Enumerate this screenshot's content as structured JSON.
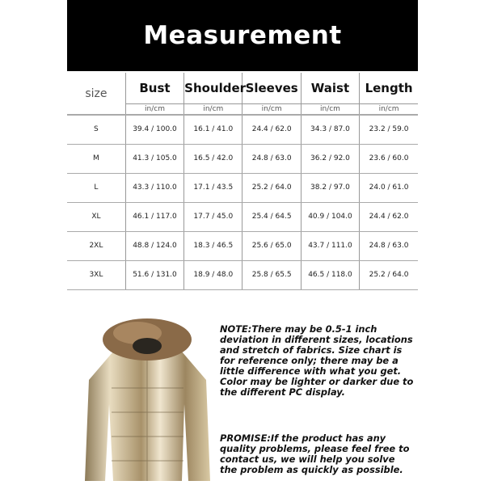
{
  "title": "Measurement",
  "table": {
    "headers": [
      "size",
      "Bust",
      "Shoulder",
      "Sleeves",
      "Waist",
      "Length"
    ],
    "unit": "in/cm",
    "rows": [
      [
        "S",
        "39.4 / 100.0",
        "16.1 / 41.0",
        "24.4 / 62.0",
        "34.3 / 87.0",
        "23.2 / 59.0"
      ],
      [
        "M",
        "41.3 / 105.0",
        "16.5 / 42.0",
        "24.8 / 63.0",
        "36.2 / 92.0",
        "23.6 / 60.0"
      ],
      [
        "L",
        "43.3 / 110.0",
        "17.1 / 43.5",
        "25.2 / 64.0",
        "38.2 / 97.0",
        "24.0 / 61.0"
      ],
      [
        "XL",
        "46.1 / 117.0",
        "17.7 / 45.0",
        "25.4 / 64.5",
        "40.9 / 104.0",
        "24.4 / 62.0"
      ],
      [
        "2XL",
        "48.8 / 124.0",
        "18.3 / 46.5",
        "25.6 / 65.0",
        "43.7 / 111.0",
        "24.8 / 63.0"
      ],
      [
        "3XL",
        "51.6 / 131.0",
        "18.9 / 48.0",
        "25.8 / 65.5",
        "46.5 / 118.0",
        "25.2 / 64.0"
      ]
    ]
  },
  "note": "NOTE:There may be 0.5-1 inch deviation in different sizes, locations and stretch of fabrics. Size chart is for reference only; there may be a little difference with what you get. Color may be lighter or darker due to the different PC display.",
  "promise": "PROMISE:If the product has any quality problems, please feel free to contact us, we will help you solve the problem as quickly as possible.",
  "colors": {
    "banner": "#000000",
    "jacket": "#c9b58a",
    "fur": "#8a6a48"
  }
}
